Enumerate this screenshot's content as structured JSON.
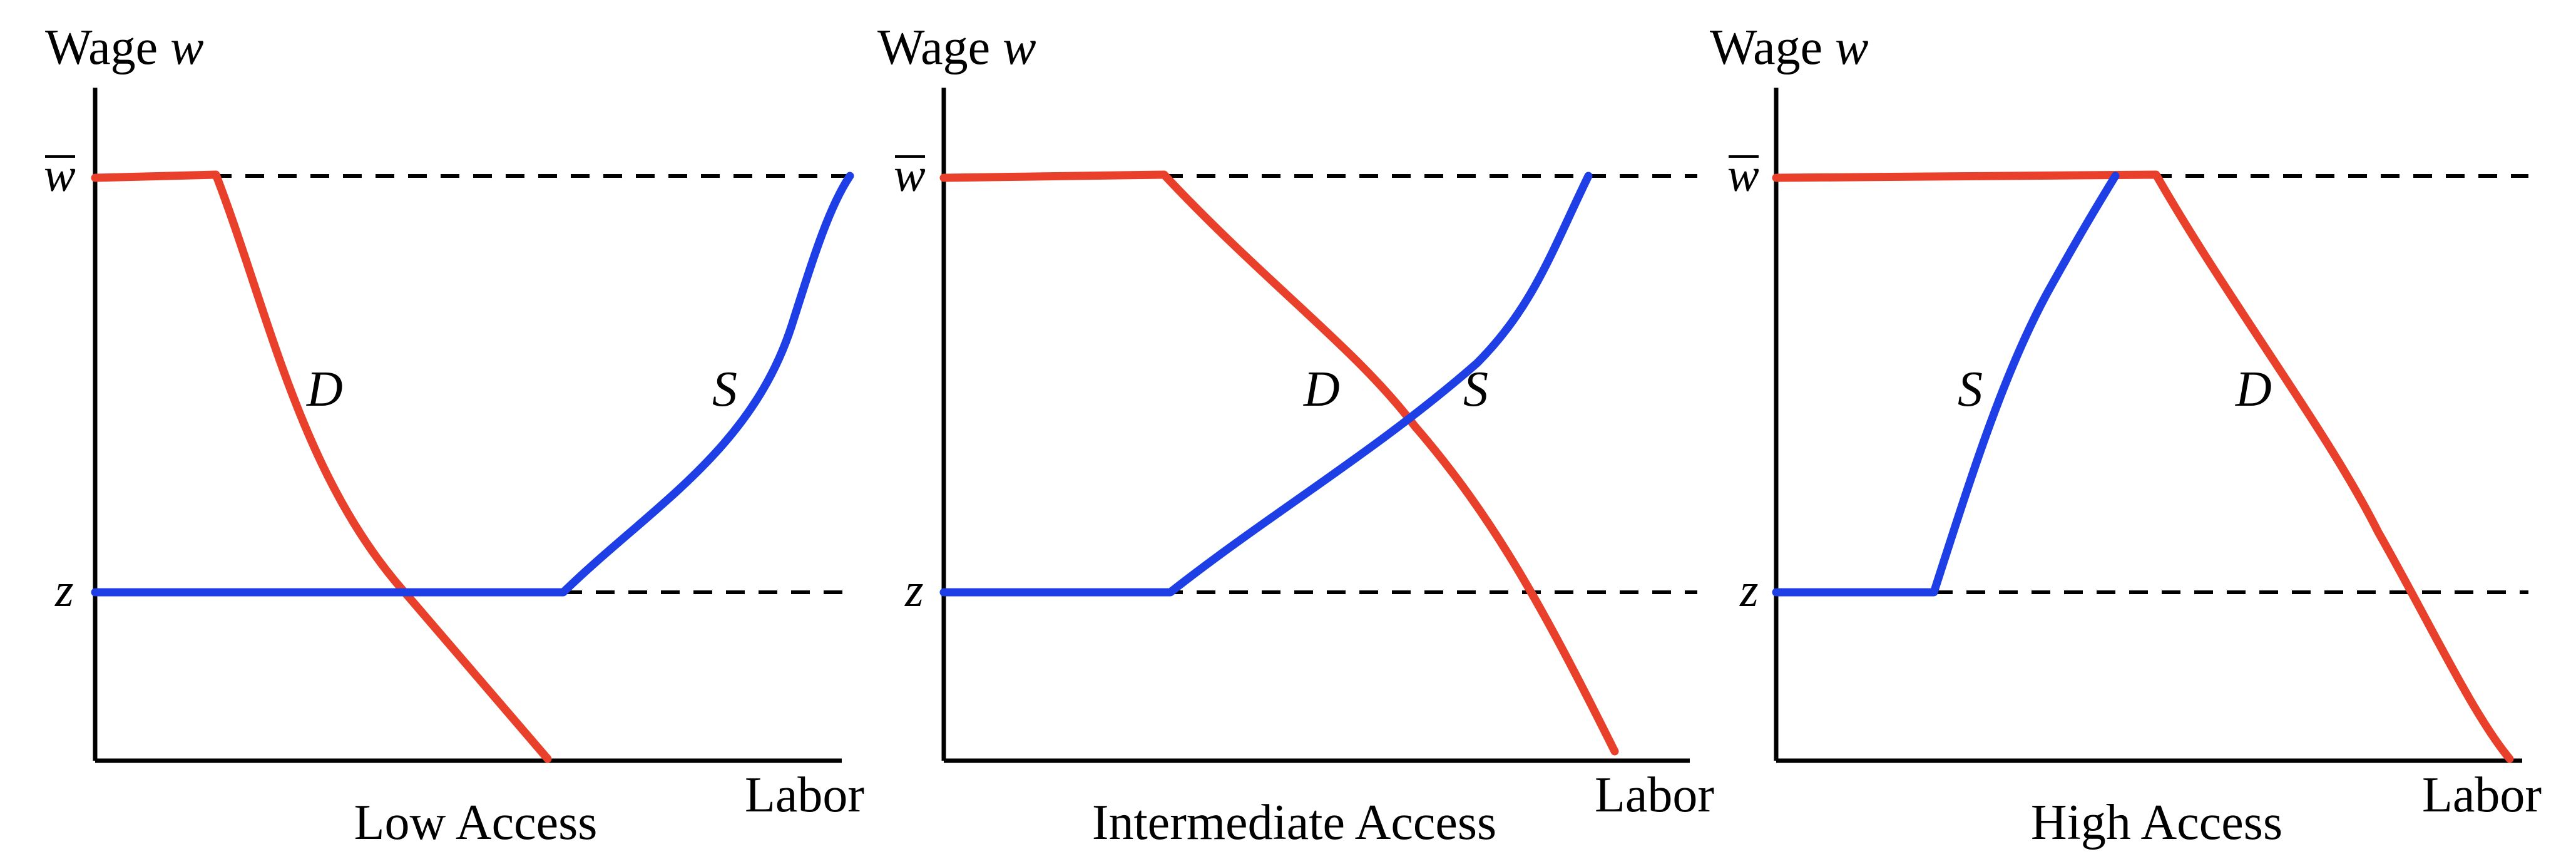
{
  "colors": {
    "demand": "#e8402a",
    "supply": "#1f3fe6",
    "axis": "#000000"
  },
  "panels": [
    {
      "title": "Low Access",
      "y_axis_label_prefix": "Wage ",
      "y_axis_label_var": "w",
      "x_axis_label": "Labor",
      "wbar_label": "w",
      "z_label": "z",
      "demand_label": "D",
      "supply_label": "S"
    },
    {
      "title": "Intermediate Access",
      "y_axis_label_prefix": "Wage ",
      "y_axis_label_var": "w",
      "x_axis_label": "Labor",
      "wbar_label": "w",
      "z_label": "z",
      "demand_label": "D",
      "supply_label": "S"
    },
    {
      "title": "High Access",
      "y_axis_label_prefix": "Wage ",
      "y_axis_label_var": "w",
      "x_axis_label": "Labor",
      "wbar_label": "w",
      "z_label": "z",
      "demand_label": "D",
      "supply_label": "S"
    }
  ]
}
